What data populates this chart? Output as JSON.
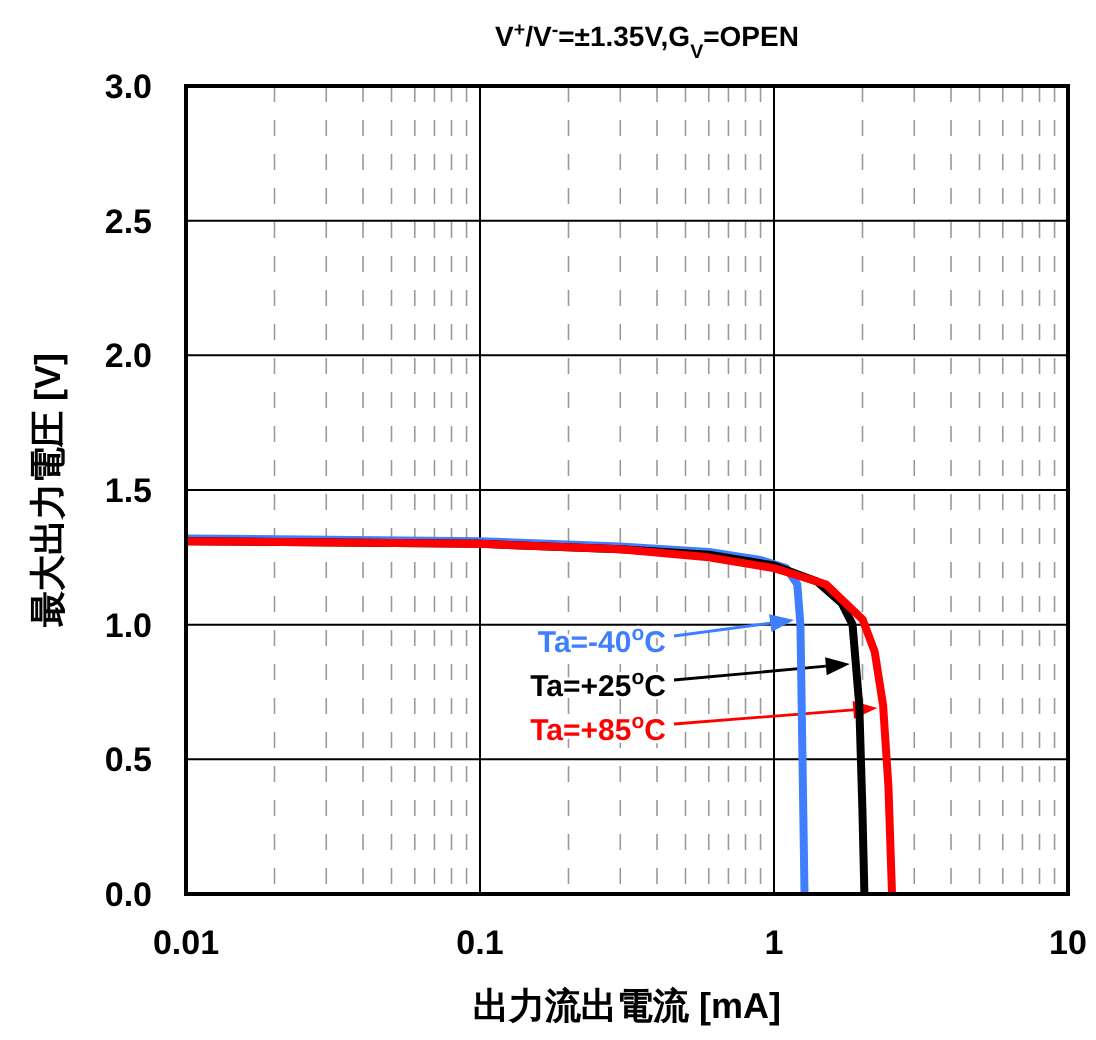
{
  "chart_data": {
    "type": "line",
    "title": "V$^{+}$/V$^{-}$=±1.35V,G$_{V}$=OPEN",
    "xlabel": "出力流出電流 [mA]",
    "ylabel": "最大出力電圧 [V]",
    "log": "x",
    "grid": true,
    "line_style": "solid",
    "marker": "none",
    "xlim": [
      0.01,
      10
    ],
    "xticks": [
      0.01,
      0.1,
      1,
      10
    ],
    "ylim": [
      0,
      3
    ],
    "yticks": [
      {
        "value": 0,
        "label": "0.0"
      },
      {
        "value": 0.5,
        "label": "0.5"
      },
      {
        "value": 1,
        "label": "1.0"
      },
      {
        "value": 1.5,
        "label": "1.5"
      },
      {
        "value": 2,
        "label": "2.0"
      },
      {
        "value": 2.5,
        "label": "2.5"
      },
      {
        "value": 3,
        "label": "3.0"
      }
    ],
    "series": [
      {
        "name": "Ta=-40$^{o}$C",
        "color": "#3f7fff",
        "x": [
          0.01,
          0.1,
          0.3,
          0.6,
          0.9,
          1.1,
          1.2,
          1.23,
          1.25,
          1.27
        ],
        "values": [
          1.32,
          1.31,
          1.29,
          1.27,
          1.24,
          1.21,
          1.15,
          1.0,
          0.5,
          0.0
        ]
      },
      {
        "name": "Ta=+25$^{o}$C",
        "color": "#000000",
        "x": [
          0.01,
          0.1,
          0.3,
          0.6,
          1.0,
          1.4,
          1.7,
          1.85,
          1.95,
          2.0,
          2.03
        ],
        "values": [
          1.31,
          1.3,
          1.28,
          1.26,
          1.22,
          1.16,
          1.08,
          1.0,
          0.7,
          0.3,
          0.0
        ]
      },
      {
        "name": "Ta=+85$^{o}$C",
        "color": "#ff0000",
        "x": [
          0.01,
          0.1,
          0.3,
          0.6,
          1.0,
          1.5,
          2.0,
          2.2,
          2.35,
          2.45,
          2.52
        ],
        "values": [
          1.31,
          1.3,
          1.28,
          1.25,
          1.21,
          1.15,
          1.02,
          0.9,
          0.7,
          0.4,
          0.0
        ]
      }
    ]
  }
}
